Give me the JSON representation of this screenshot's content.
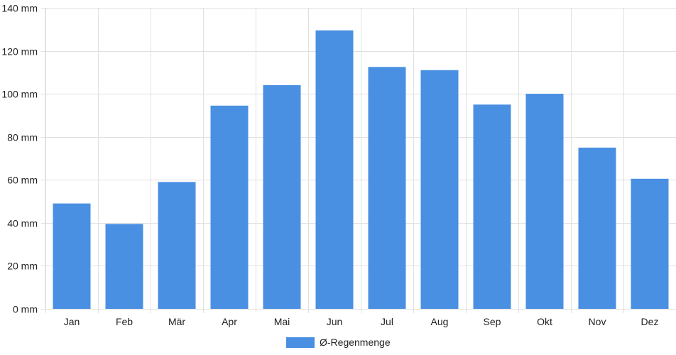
{
  "chart_data": {
    "type": "bar",
    "categories": [
      "Jan",
      "Feb",
      "Mär",
      "Apr",
      "Mai",
      "Jun",
      "Jul",
      "Aug",
      "Sep",
      "Okt",
      "Nov",
      "Dez"
    ],
    "series": [
      {
        "name": "Ø-Regenmenge",
        "color": "#4a90e2",
        "values": [
          49,
          39.5,
          59,
          94.5,
          104,
          129.5,
          112.5,
          111,
          95,
          100,
          75,
          60.5
        ]
      }
    ],
    "y_ticks": [
      0,
      20,
      40,
      60,
      80,
      100,
      120,
      140
    ],
    "y_unit": "mm",
    "ylim": [
      0,
      140
    ],
    "grid": true,
    "legend_position": "bottom",
    "gridline_color": "#e0e0e0",
    "axis_color": "#cccccc"
  }
}
